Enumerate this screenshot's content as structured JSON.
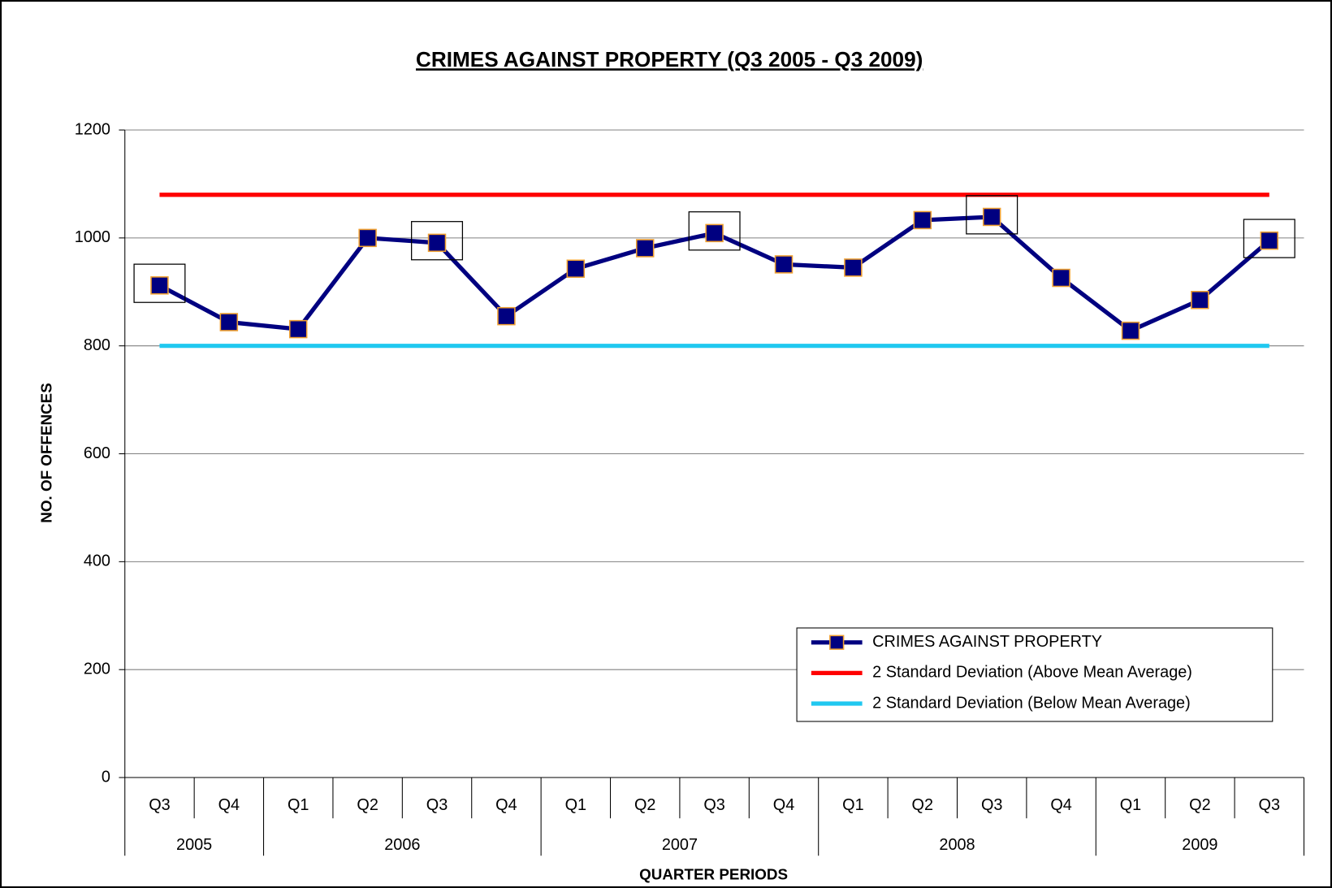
{
  "chart_data": {
    "type": "line",
    "title": "CRIMES AGAINST PROPERTY (Q3 2005 - Q3 2009)",
    "x_label": "QUARTER PERIODS",
    "y_label": "NO. OF OFFENCES",
    "categories": [
      [
        "Q3",
        "2005"
      ],
      [
        "Q4",
        "2005"
      ],
      [
        "Q1",
        "2006"
      ],
      [
        "Q2",
        "2006"
      ],
      [
        "Q3",
        "2006"
      ],
      [
        "Q4",
        "2006"
      ],
      [
        "Q1",
        "2007"
      ],
      [
        "Q2",
        "2007"
      ],
      [
        "Q3",
        "2007"
      ],
      [
        "Q4",
        "2007"
      ],
      [
        "Q1",
        "2008"
      ],
      [
        "Q2",
        "2008"
      ],
      [
        "Q3",
        "2008"
      ],
      [
        "Q4",
        "2008"
      ],
      [
        "Q1",
        "2009"
      ],
      [
        "Q2",
        "2009"
      ],
      [
        "Q3",
        "2009"
      ]
    ],
    "series": [
      {
        "name": "CRIMES AGAINST PROPERTY",
        "color": "#000080",
        "marker": "square",
        "marker_edge": "#f0a030",
        "values": [
          912,
          844,
          831,
          1000,
          991,
          855,
          943,
          981,
          1009,
          951,
          945,
          1033,
          1039,
          926,
          828,
          885,
          995
        ]
      },
      {
        "name": "2 Standard Deviation (Above Mean Average)",
        "color": "#ff0000",
        "values": [
          1080,
          1080,
          1080,
          1080,
          1080,
          1080,
          1080,
          1080,
          1080,
          1080,
          1080,
          1080,
          1080,
          1080,
          1080,
          1080,
          1080
        ]
      },
      {
        "name": "2 Standard Deviation (Below Mean Average)",
        "color": "#20c8f0",
        "values": [
          800,
          800,
          800,
          800,
          800,
          800,
          800,
          800,
          800,
          800,
          800,
          800,
          800,
          800,
          800,
          800,
          800
        ]
      }
    ],
    "highlighted": [
      0,
      4,
      8,
      12,
      16
    ],
    "ylim": [
      0,
      1200
    ],
    "yticks": [
      0,
      200,
      400,
      600,
      800,
      1000,
      1200
    ],
    "grid": true,
    "legend": "lower right"
  }
}
